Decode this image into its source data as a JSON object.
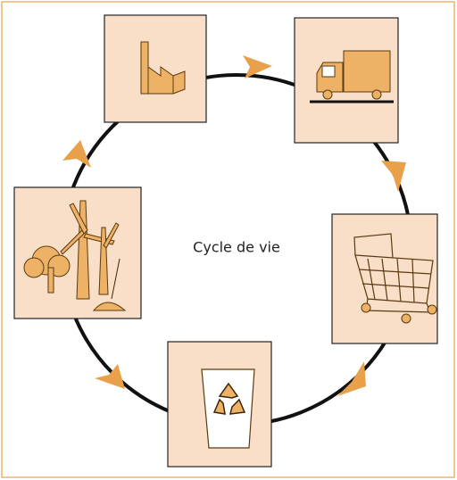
{
  "diagram": {
    "center_label": "Cycle de vie"
  }
}
